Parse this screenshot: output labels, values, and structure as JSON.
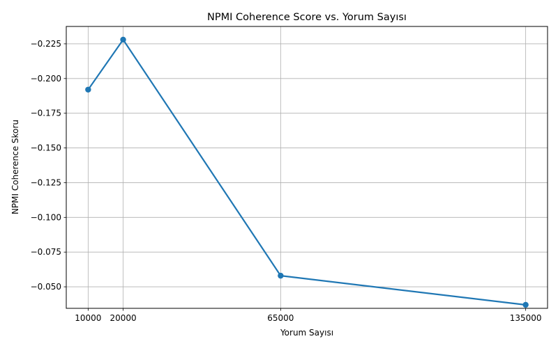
{
  "chart_data": {
    "type": "line",
    "title": "NPMI Coherence Score vs. Yorum Sayısı",
    "xlabel": "Yorum Sayısı",
    "ylabel": "NPMI Coherence Skoru",
    "x": [
      10000,
      20000,
      65000,
      135000
    ],
    "x_tick_labels": [
      "10000",
      "20000",
      "65000",
      "135000"
    ],
    "series": [
      {
        "values": [
          -0.192,
          -0.228,
          -0.058,
          -0.037
        ],
        "color": "#1f77b4"
      }
    ],
    "xlim": [
      3750,
      141250
    ],
    "ylim": [
      -0.0345,
      -0.2375
    ],
    "y_ticks": [
      -0.225,
      -0.2,
      -0.175,
      -0.15,
      -0.125,
      -0.1,
      -0.075,
      -0.05
    ],
    "y_tick_labels": [
      "−0.225",
      "−0.200",
      "−0.175",
      "−0.150",
      "−0.125",
      "−0.100",
      "−0.075",
      "−0.050"
    ],
    "y_axis_inverted": true,
    "grid": true,
    "marker": "circle",
    "legend": "none"
  }
}
